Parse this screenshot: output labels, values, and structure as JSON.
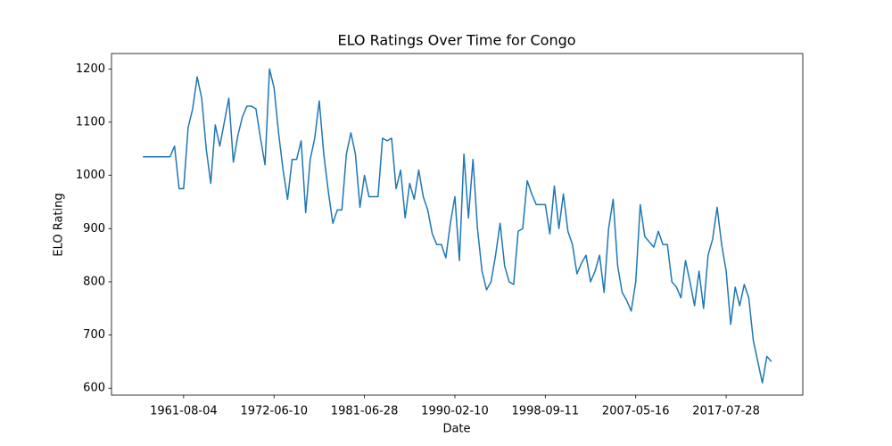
{
  "chart_data": {
    "type": "line",
    "title": "ELO Ratings Over Time for Congo",
    "x_label": "Date",
    "y_label": "ELO Rating",
    "color": "#1f77b4",
    "categories": [
      null,
      null,
      null,
      null,
      null,
      null,
      null,
      null,
      null,
      "1961-08-04",
      null,
      null,
      null,
      null,
      null,
      null,
      null,
      null,
      null,
      null,
      null,
      null,
      null,
      null,
      null,
      null,
      null,
      null,
      null,
      "1972-06-10",
      null,
      null,
      null,
      null,
      null,
      null,
      null,
      null,
      null,
      null,
      null,
      null,
      null,
      null,
      null,
      null,
      null,
      null,
      null,
      "1981-06-28",
      null,
      null,
      null,
      null,
      null,
      null,
      null,
      null,
      null,
      null,
      null,
      null,
      null,
      null,
      null,
      null,
      null,
      null,
      null,
      "1990-02-10",
      null,
      null,
      null,
      null,
      null,
      null,
      null,
      null,
      null,
      null,
      null,
      null,
      null,
      null,
      null,
      null,
      null,
      null,
      null,
      "1998-09-11",
      null,
      null,
      null,
      null,
      null,
      null,
      null,
      null,
      null,
      null,
      null,
      null,
      null,
      null,
      null,
      null,
      null,
      null,
      null,
      "2007-05-16",
      null,
      null,
      null,
      null,
      null,
      null,
      null,
      null,
      null,
      null,
      null,
      null,
      null,
      null,
      null,
      null,
      null,
      null,
      null,
      "2017-07-28",
      null,
      null,
      null,
      null,
      null,
      null,
      null,
      null,
      null,
      null
    ],
    "values": [
      1035,
      1035,
      1035,
      1035,
      1035,
      1035,
      1035,
      1055,
      975,
      975,
      1090,
      1125,
      1185,
      1145,
      1050,
      985,
      1095,
      1055,
      1100,
      1145,
      1025,
      1075,
      1110,
      1130,
      1130,
      1125,
      1070,
      1020,
      1200,
      1165,
      1080,
      1010,
      955,
      1030,
      1030,
      1065,
      930,
      1030,
      1070,
      1140,
      1040,
      970,
      910,
      935,
      935,
      1040,
      1080,
      1040,
      940,
      1000,
      960,
      960,
      960,
      1070,
      1065,
      1070,
      975,
      1010,
      920,
      985,
      955,
      1010,
      960,
      935,
      890,
      870,
      870,
      845,
      910,
      960,
      840,
      1040,
      920,
      1030,
      900,
      820,
      785,
      800,
      850,
      910,
      830,
      800,
      795,
      895,
      900,
      990,
      965,
      945,
      945,
      945,
      890,
      980,
      900,
      965,
      895,
      870,
      815,
      835,
      850,
      800,
      820,
      850,
      780,
      900,
      955,
      830,
      780,
      765,
      745,
      800,
      945,
      885,
      875,
      865,
      895,
      870,
      870,
      800,
      790,
      770,
      840,
      800,
      755,
      820,
      750,
      850,
      880,
      940,
      870,
      820,
      720,
      790,
      755,
      795,
      770,
      690,
      650,
      610,
      660,
      650
    ],
    "ylim": [
      587,
      1229
    ],
    "yticks": [
      600,
      700,
      800,
      900,
      1000,
      1100,
      1200
    ]
  }
}
